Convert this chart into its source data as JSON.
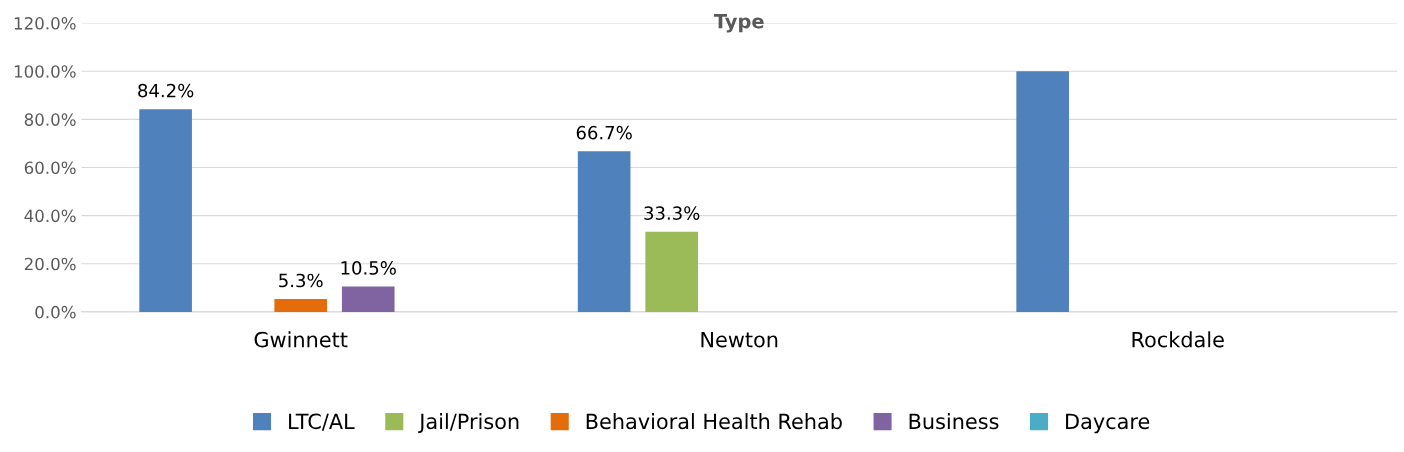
{
  "chart_data": {
    "type": "bar",
    "title": "Type",
    "categories": [
      "Gwinnett",
      "Newton",
      "Rockdale"
    ],
    "series": [
      {
        "name": "LTC/AL",
        "color": "#4f81bd",
        "values": [
          84.2,
          66.7,
          100
        ],
        "value_labels": [
          "84.2%",
          "66.7%",
          null
        ]
      },
      {
        "name": "Jail/Prison",
        "color": "#9bbb59",
        "values": [
          null,
          33.3,
          null
        ],
        "value_labels": [
          null,
          "33.3%",
          null
        ]
      },
      {
        "name": "Behavioral Health Rehab",
        "color": "#e46c0a",
        "values": [
          5.3,
          null,
          null
        ],
        "value_labels": [
          "5.3%",
          null,
          null
        ]
      },
      {
        "name": "Business",
        "color": "#8064a2",
        "values": [
          10.5,
          null,
          null
        ],
        "value_labels": [
          "10.5%",
          null,
          null
        ]
      },
      {
        "name": "Daycare",
        "color": "#4bacc6",
        "values": [
          null,
          null,
          null
        ]
      }
    ],
    "ylim": [
      0,
      120
    ],
    "yticks": [
      {
        "value": 0,
        "label": "0.0%"
      },
      {
        "value": 20,
        "label": "20.0%"
      },
      {
        "value": 40,
        "label": "40.0%"
      },
      {
        "value": 60,
        "label": "60.0%"
      },
      {
        "value": 80,
        "label": "80.0%"
      },
      {
        "value": 100,
        "label": "100.0%"
      },
      {
        "value": 120,
        "label": "120.0%"
      }
    ],
    "grid": "y",
    "legend": "bottom"
  }
}
